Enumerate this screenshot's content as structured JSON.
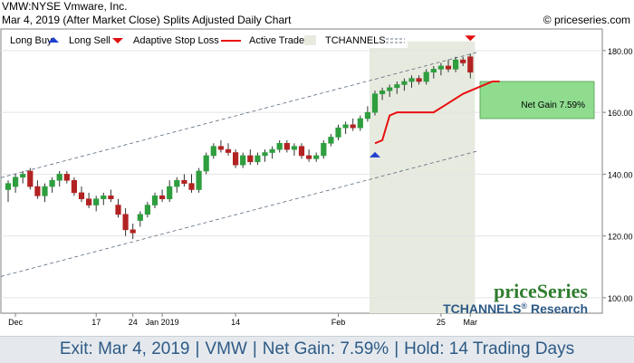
{
  "header": {
    "title": "VMW:NYSE Vmware, Inc.",
    "subtitle": "Mar 4, 2019 (After Market Close)  Splits Adjusted Daily Chart",
    "copyright": "© priceseries.com"
  },
  "legend": {
    "long_buy": "Long Buy",
    "long_sell": "Long Sell",
    "adaptive_stop": "Adaptive Stop Loss",
    "active_trade": "Active Trade",
    "tchannels": "TCHANNELS"
  },
  "brand": {
    "name": "priceSeries",
    "research_prefix": "TCHANNELS",
    "research_mark": "®",
    "research_suffix": " Research"
  },
  "net_gain_label": "Net Gain 7.59%",
  "footer": {
    "exit": "Exit: Mar 4, 2019",
    "symbol": "VMW",
    "net_gain": "Net Gain: 7.59%",
    "hold": "Hold: 14 Trading Days"
  },
  "colors": {
    "up": "#2e9e3e",
    "down": "#b22222",
    "buy_arrow": "#1f3fd0",
    "sell_arrow": "#e01010",
    "stop_line": "#e81010",
    "active_trade": "#e7eadf",
    "gain_box": "#8fdc8f",
    "brand_green": "#2f7d2f",
    "brand_blue": "#2d5a86"
  },
  "chart_data": {
    "type": "candlestick",
    "y_range": [
      95,
      187
    ],
    "y_ticks": [
      100,
      120,
      140,
      160,
      180
    ],
    "y_tick_labels": [
      "100.00",
      "120.00",
      "140.00",
      "160.00",
      "180.00"
    ],
    "x_labels": [
      {
        "index": 1,
        "label": "Dec"
      },
      {
        "index": 12,
        "label": "17"
      },
      {
        "index": 17,
        "label": "24"
      },
      {
        "index": 21,
        "label": "Jan 2019"
      },
      {
        "index": 31,
        "label": "14"
      },
      {
        "index": 45,
        "label": "Feb"
      },
      {
        "index": 59,
        "label": "25"
      },
      {
        "index": 63,
        "label": "Mar"
      }
    ],
    "candles": [
      {
        "o": 135,
        "h": 138,
        "l": 131,
        "c": 137
      },
      {
        "o": 136,
        "h": 140,
        "l": 134,
        "c": 139
      },
      {
        "o": 139,
        "h": 141,
        "l": 137,
        "c": 140
      },
      {
        "o": 141,
        "h": 142,
        "l": 135,
        "c": 136
      },
      {
        "o": 136,
        "h": 138,
        "l": 132,
        "c": 133
      },
      {
        "o": 133,
        "h": 137,
        "l": 131,
        "c": 136
      },
      {
        "o": 136,
        "h": 139,
        "l": 134,
        "c": 138
      },
      {
        "o": 138,
        "h": 141,
        "l": 136,
        "c": 140
      },
      {
        "o": 140,
        "h": 141,
        "l": 137,
        "c": 138
      },
      {
        "o": 138,
        "h": 139,
        "l": 133,
        "c": 134
      },
      {
        "o": 134,
        "h": 136,
        "l": 131,
        "c": 132
      },
      {
        "o": 132,
        "h": 134,
        "l": 129,
        "c": 130
      },
      {
        "o": 130,
        "h": 133,
        "l": 128,
        "c": 132
      },
      {
        "o": 132,
        "h": 134,
        "l": 130,
        "c": 133
      },
      {
        "o": 133,
        "h": 135,
        "l": 131,
        "c": 132
      },
      {
        "o": 130,
        "h": 132,
        "l": 126,
        "c": 127
      },
      {
        "o": 127,
        "h": 129,
        "l": 120,
        "c": 122
      },
      {
        "o": 122,
        "h": 124,
        "l": 119,
        "c": 121
      },
      {
        "o": 125,
        "h": 128,
        "l": 123,
        "c": 127
      },
      {
        "o": 127,
        "h": 131,
        "l": 126,
        "c": 130
      },
      {
        "o": 130,
        "h": 134,
        "l": 129,
        "c": 133
      },
      {
        "o": 133,
        "h": 135,
        "l": 131,
        "c": 132
      },
      {
        "o": 132,
        "h": 138,
        "l": 131,
        "c": 136
      },
      {
        "o": 136,
        "h": 139,
        "l": 134,
        "c": 138
      },
      {
        "o": 138,
        "h": 140,
        "l": 136,
        "c": 137
      },
      {
        "o": 137,
        "h": 140,
        "l": 134,
        "c": 135
      },
      {
        "o": 135,
        "h": 142,
        "l": 134,
        "c": 141
      },
      {
        "o": 141,
        "h": 147,
        "l": 140,
        "c": 146
      },
      {
        "o": 146,
        "h": 150,
        "l": 145,
        "c": 149
      },
      {
        "o": 149,
        "h": 151,
        "l": 147,
        "c": 148
      },
      {
        "o": 148,
        "h": 150,
        "l": 146,
        "c": 147
      },
      {
        "o": 147,
        "h": 148,
        "l": 142,
        "c": 143
      },
      {
        "o": 143,
        "h": 147,
        "l": 142,
        "c": 146
      },
      {
        "o": 146,
        "h": 148,
        "l": 143,
        "c": 144
      },
      {
        "o": 144,
        "h": 147,
        "l": 143,
        "c": 146
      },
      {
        "o": 146,
        "h": 148,
        "l": 144,
        "c": 147
      },
      {
        "o": 147,
        "h": 149,
        "l": 145,
        "c": 148
      },
      {
        "o": 148,
        "h": 151,
        "l": 147,
        "c": 150
      },
      {
        "o": 150,
        "h": 151,
        "l": 147,
        "c": 148
      },
      {
        "o": 148,
        "h": 150,
        "l": 146,
        "c": 149
      },
      {
        "o": 149,
        "h": 150,
        "l": 145,
        "c": 146
      },
      {
        "o": 146,
        "h": 148,
        "l": 144,
        "c": 145
      },
      {
        "o": 145,
        "h": 147,
        "l": 144,
        "c": 146
      },
      {
        "o": 146,
        "h": 151,
        "l": 145,
        "c": 150
      },
      {
        "o": 150,
        "h": 153,
        "l": 149,
        "c": 152
      },
      {
        "o": 152,
        "h": 156,
        "l": 151,
        "c": 155
      },
      {
        "o": 155,
        "h": 157,
        "l": 153,
        "c": 156
      },
      {
        "o": 156,
        "h": 158,
        "l": 154,
        "c": 155
      },
      {
        "o": 155,
        "h": 159,
        "l": 154,
        "c": 158
      },
      {
        "o": 158,
        "h": 162,
        "l": 157,
        "c": 160
      },
      {
        "o": 160,
        "h": 167,
        "l": 159,
        "c": 166
      },
      {
        "o": 166,
        "h": 168,
        "l": 164,
        "c": 167
      },
      {
        "o": 167,
        "h": 169,
        "l": 165,
        "c": 168
      },
      {
        "o": 168,
        "h": 170,
        "l": 166,
        "c": 169
      },
      {
        "o": 169,
        "h": 171,
        "l": 167,
        "c": 170
      },
      {
        "o": 170,
        "h": 172,
        "l": 168,
        "c": 171
      },
      {
        "o": 171,
        "h": 172,
        "l": 169,
        "c": 170
      },
      {
        "o": 170,
        "h": 174,
        "l": 169,
        "c": 173
      },
      {
        "o": 173,
        "h": 175,
        "l": 171,
        "c": 174
      },
      {
        "o": 174,
        "h": 176,
        "l": 172,
        "c": 175
      },
      {
        "o": 175,
        "h": 177,
        "l": 173,
        "c": 174
      },
      {
        "o": 174,
        "h": 178,
        "l": 173,
        "c": 177
      },
      {
        "o": 177,
        "h": 178,
        "l": 175,
        "c": 176
      },
      {
        "o": 178,
        "h": 179,
        "l": 171,
        "c": 173
      }
    ],
    "stop_loss": [
      {
        "i": 50,
        "v": 150
      },
      {
        "i": 51,
        "v": 151
      },
      {
        "i": 52,
        "v": 159
      },
      {
        "i": 53,
        "v": 160
      },
      {
        "i": 56,
        "v": 160
      },
      {
        "i": 58,
        "v": 160
      },
      {
        "i": 60,
        "v": 163
      },
      {
        "i": 62,
        "v": 166
      },
      {
        "i": 64,
        "v": 168
      },
      {
        "i": 66,
        "v": 170
      },
      {
        "i": 67,
        "v": 170
      }
    ],
    "channel": {
      "upper": [
        {
          "i": 0,
          "v": 139.5
        },
        {
          "i": 64,
          "v": 179.5
        }
      ],
      "lower": [
        {
          "i": 0,
          "v": 107.5
        },
        {
          "i": 64,
          "v": 147.5
        }
      ],
      "middle": [
        {
          "i": 0,
          "v": 123.5
        },
        {
          "i": 64,
          "v": 163.5
        }
      ]
    },
    "active_trade_range": {
      "start_index": 50,
      "end_index": 63,
      "y_top": 183
    },
    "buy_signal": {
      "index": 50,
      "value": 146
    },
    "sell_signal": {
      "index": 63,
      "value": 184
    },
    "net_gain_box": {
      "top": 170,
      "bottom": 158
    }
  }
}
